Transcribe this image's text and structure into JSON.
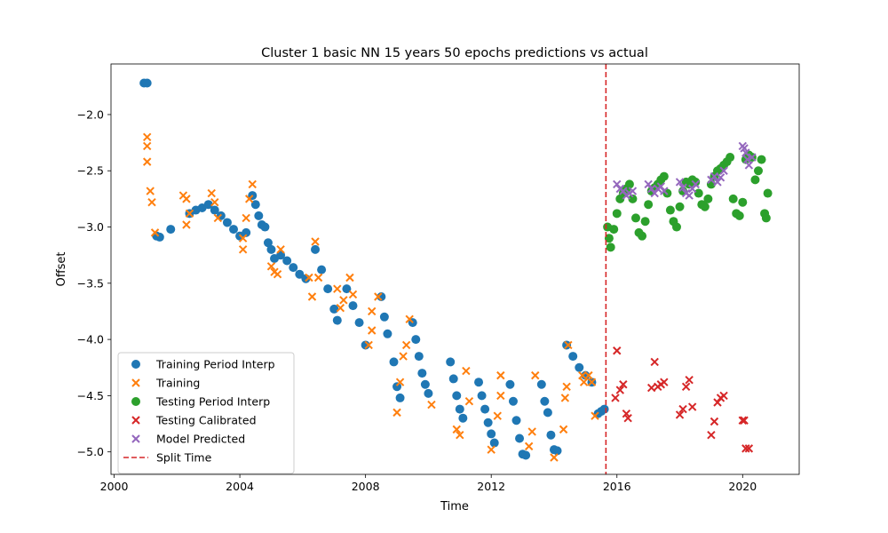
{
  "chart_data": {
    "type": "scatter",
    "title": "Cluster 1 basic NN 15 years 50 epochs predictions vs actual",
    "xlabel": "Time",
    "ylabel": "Offset",
    "xlim": [
      1999.9,
      2021.8
    ],
    "ylim": [
      -5.2,
      -1.55
    ],
    "xticks": [
      2000,
      2004,
      2008,
      2012,
      2016,
      2020
    ],
    "xtick_labels": [
      "2000",
      "2004",
      "2008",
      "2012",
      "2016",
      "2020"
    ],
    "yticks": [
      -2.0,
      -2.5,
      -3.0,
      -3.5,
      -4.0,
      -4.5,
      -5.0
    ],
    "ytick_labels": [
      "−2.0",
      "−2.5",
      "−3.0",
      "−3.5",
      "−4.0",
      "−4.5",
      "−5.0"
    ],
    "grid": false,
    "legend_position": "lower-left",
    "split_time": 2015.65,
    "series": [
      {
        "name": "Training Period Interp",
        "marker": "circle",
        "color": "#1f77b4",
        "points": [
          [
            2000.95,
            -1.72
          ],
          [
            2001.05,
            -1.72
          ],
          [
            2001.35,
            -3.08
          ],
          [
            2001.45,
            -3.09
          ],
          [
            2001.8,
            -3.02
          ],
          [
            2002.4,
            -2.88
          ],
          [
            2002.6,
            -2.85
          ],
          [
            2002.8,
            -2.83
          ],
          [
            2003.0,
            -2.8
          ],
          [
            2003.2,
            -2.85
          ],
          [
            2003.4,
            -2.9
          ],
          [
            2003.6,
            -2.96
          ],
          [
            2003.8,
            -3.02
          ],
          [
            2004.0,
            -3.08
          ],
          [
            2004.2,
            -3.05
          ],
          [
            2004.4,
            -2.72
          ],
          [
            2004.5,
            -2.8
          ],
          [
            2004.6,
            -2.9
          ],
          [
            2004.7,
            -2.98
          ],
          [
            2004.8,
            -3.0
          ],
          [
            2004.9,
            -3.14
          ],
          [
            2005.0,
            -3.2
          ],
          [
            2005.1,
            -3.28
          ],
          [
            2005.3,
            -3.25
          ],
          [
            2005.5,
            -3.3
          ],
          [
            2005.7,
            -3.36
          ],
          [
            2005.9,
            -3.42
          ],
          [
            2006.1,
            -3.46
          ],
          [
            2006.4,
            -3.2
          ],
          [
            2006.6,
            -3.38
          ],
          [
            2006.8,
            -3.55
          ],
          [
            2007.0,
            -3.73
          ],
          [
            2007.1,
            -3.83
          ],
          [
            2007.4,
            -3.55
          ],
          [
            2007.6,
            -3.7
          ],
          [
            2007.8,
            -3.85
          ],
          [
            2008.0,
            -4.05
          ],
          [
            2008.5,
            -3.62
          ],
          [
            2008.6,
            -3.8
          ],
          [
            2008.7,
            -3.95
          ],
          [
            2008.9,
            -4.2
          ],
          [
            2009.0,
            -4.42
          ],
          [
            2009.1,
            -4.52
          ],
          [
            2009.5,
            -3.85
          ],
          [
            2009.6,
            -4.0
          ],
          [
            2009.7,
            -4.15
          ],
          [
            2009.8,
            -4.3
          ],
          [
            2009.9,
            -4.4
          ],
          [
            2010.0,
            -4.48
          ],
          [
            2010.7,
            -4.2
          ],
          [
            2010.8,
            -4.35
          ],
          [
            2010.9,
            -4.5
          ],
          [
            2011.0,
            -4.62
          ],
          [
            2011.1,
            -4.7
          ],
          [
            2011.6,
            -4.38
          ],
          [
            2011.7,
            -4.5
          ],
          [
            2011.8,
            -4.62
          ],
          [
            2011.9,
            -4.74
          ],
          [
            2012.0,
            -4.84
          ],
          [
            2012.1,
            -4.92
          ],
          [
            2012.6,
            -4.4
          ],
          [
            2012.7,
            -4.55
          ],
          [
            2012.8,
            -4.72
          ],
          [
            2012.9,
            -4.88
          ],
          [
            2013.0,
            -5.02
          ],
          [
            2013.1,
            -5.03
          ],
          [
            2013.6,
            -4.4
          ],
          [
            2013.7,
            -4.55
          ],
          [
            2013.8,
            -4.65
          ],
          [
            2013.9,
            -4.85
          ],
          [
            2014.0,
            -4.98
          ],
          [
            2014.1,
            -4.99
          ],
          [
            2014.4,
            -4.05
          ],
          [
            2014.6,
            -4.15
          ],
          [
            2014.8,
            -4.25
          ],
          [
            2015.0,
            -4.32
          ],
          [
            2015.2,
            -4.38
          ],
          [
            2015.4,
            -4.66
          ],
          [
            2015.5,
            -4.64
          ],
          [
            2015.6,
            -4.62
          ]
        ]
      },
      {
        "name": "Training",
        "marker": "x",
        "color": "#ff7f0e",
        "points": [
          [
            2001.05,
            -2.2
          ],
          [
            2001.05,
            -2.28
          ],
          [
            2001.05,
            -2.42
          ],
          [
            2001.15,
            -2.68
          ],
          [
            2001.2,
            -2.78
          ],
          [
            2001.3,
            -3.05
          ],
          [
            2002.2,
            -2.72
          ],
          [
            2002.3,
            -2.75
          ],
          [
            2002.3,
            -2.98
          ],
          [
            2002.4,
            -2.88
          ],
          [
            2003.1,
            -2.7
          ],
          [
            2003.2,
            -2.78
          ],
          [
            2003.3,
            -2.92
          ],
          [
            2004.1,
            -3.1
          ],
          [
            2004.1,
            -3.2
          ],
          [
            2004.2,
            -2.92
          ],
          [
            2004.3,
            -2.75
          ],
          [
            2004.4,
            -2.62
          ],
          [
            2005.0,
            -3.35
          ],
          [
            2005.1,
            -3.4
          ],
          [
            2005.2,
            -3.42
          ],
          [
            2005.3,
            -3.2
          ],
          [
            2006.2,
            -3.45
          ],
          [
            2006.3,
            -3.62
          ],
          [
            2006.4,
            -3.13
          ],
          [
            2006.5,
            -3.45
          ],
          [
            2007.1,
            -3.55
          ],
          [
            2007.2,
            -3.72
          ],
          [
            2007.3,
            -3.65
          ],
          [
            2007.5,
            -3.45
          ],
          [
            2007.6,
            -3.6
          ],
          [
            2008.1,
            -4.05
          ],
          [
            2008.2,
            -3.75
          ],
          [
            2008.2,
            -3.92
          ],
          [
            2008.4,
            -3.62
          ],
          [
            2009.0,
            -4.65
          ],
          [
            2009.1,
            -4.38
          ],
          [
            2009.2,
            -4.15
          ],
          [
            2009.3,
            -4.05
          ],
          [
            2009.4,
            -3.82
          ],
          [
            2010.1,
            -4.58
          ],
          [
            2010.9,
            -4.8
          ],
          [
            2011.0,
            -4.85
          ],
          [
            2011.2,
            -4.28
          ],
          [
            2011.3,
            -4.55
          ],
          [
            2012.0,
            -4.98
          ],
          [
            2012.2,
            -4.68
          ],
          [
            2012.3,
            -4.32
          ],
          [
            2012.3,
            -4.5
          ],
          [
            2013.2,
            -4.95
          ],
          [
            2013.3,
            -4.82
          ],
          [
            2013.4,
            -4.32
          ],
          [
            2014.0,
            -5.05
          ],
          [
            2014.3,
            -4.8
          ],
          [
            2014.35,
            -4.52
          ],
          [
            2014.4,
            -4.42
          ],
          [
            2014.45,
            -4.05
          ],
          [
            2014.9,
            -4.32
          ],
          [
            2014.95,
            -4.38
          ],
          [
            2015.1,
            -4.32
          ],
          [
            2015.2,
            -4.38
          ],
          [
            2015.3,
            -4.68
          ]
        ]
      },
      {
        "name": "Testing Period Interp",
        "marker": "circle",
        "color": "#2ca02c",
        "points": [
          [
            2015.7,
            -3.0
          ],
          [
            2015.75,
            -3.1
          ],
          [
            2015.8,
            -3.18
          ],
          [
            2015.9,
            -3.02
          ],
          [
            2016.0,
            -2.88
          ],
          [
            2016.1,
            -2.75
          ],
          [
            2016.2,
            -2.7
          ],
          [
            2016.3,
            -2.66
          ],
          [
            2016.4,
            -2.62
          ],
          [
            2016.5,
            -2.75
          ],
          [
            2016.6,
            -2.92
          ],
          [
            2016.7,
            -3.05
          ],
          [
            2016.8,
            -3.08
          ],
          [
            2016.9,
            -2.95
          ],
          [
            2017.0,
            -2.8
          ],
          [
            2017.1,
            -2.68
          ],
          [
            2017.2,
            -2.65
          ],
          [
            2017.3,
            -2.62
          ],
          [
            2017.4,
            -2.58
          ],
          [
            2017.5,
            -2.55
          ],
          [
            2017.6,
            -2.7
          ],
          [
            2017.7,
            -2.85
          ],
          [
            2017.8,
            -2.95
          ],
          [
            2017.9,
            -3.0
          ],
          [
            2018.0,
            -2.82
          ],
          [
            2018.1,
            -2.68
          ],
          [
            2018.2,
            -2.6
          ],
          [
            2018.3,
            -2.62
          ],
          [
            2018.4,
            -2.58
          ],
          [
            2018.5,
            -2.6
          ],
          [
            2018.6,
            -2.7
          ],
          [
            2018.7,
            -2.8
          ],
          [
            2018.8,
            -2.82
          ],
          [
            2018.9,
            -2.75
          ],
          [
            2019.0,
            -2.62
          ],
          [
            2019.1,
            -2.55
          ],
          [
            2019.2,
            -2.5
          ],
          [
            2019.3,
            -2.48
          ],
          [
            2019.4,
            -2.45
          ],
          [
            2019.5,
            -2.42
          ],
          [
            2019.6,
            -2.38
          ],
          [
            2019.7,
            -2.75
          ],
          [
            2019.8,
            -2.88
          ],
          [
            2019.9,
            -2.9
          ],
          [
            2020.0,
            -2.78
          ],
          [
            2020.1,
            -2.4
          ],
          [
            2020.2,
            -2.36
          ],
          [
            2020.3,
            -2.38
          ],
          [
            2020.4,
            -2.58
          ],
          [
            2020.5,
            -2.5
          ],
          [
            2020.6,
            -2.4
          ],
          [
            2020.7,
            -2.88
          ],
          [
            2020.75,
            -2.92
          ],
          [
            2020.8,
            -2.7
          ]
        ]
      },
      {
        "name": "Testing Calibrated",
        "marker": "x",
        "color": "#d62728",
        "points": [
          [
            2015.95,
            -4.52
          ],
          [
            2016.0,
            -4.1
          ],
          [
            2016.1,
            -4.45
          ],
          [
            2016.2,
            -4.4
          ],
          [
            2016.3,
            -4.66
          ],
          [
            2016.35,
            -4.7
          ],
          [
            2017.1,
            -4.43
          ],
          [
            2017.2,
            -4.2
          ],
          [
            2017.3,
            -4.42
          ],
          [
            2017.4,
            -4.4
          ],
          [
            2017.5,
            -4.38
          ],
          [
            2018.0,
            -4.67
          ],
          [
            2018.1,
            -4.62
          ],
          [
            2018.2,
            -4.42
          ],
          [
            2018.3,
            -4.36
          ],
          [
            2018.4,
            -4.6
          ],
          [
            2019.0,
            -4.85
          ],
          [
            2019.1,
            -4.73
          ],
          [
            2019.2,
            -4.56
          ],
          [
            2019.3,
            -4.52
          ],
          [
            2019.4,
            -4.5
          ],
          [
            2020.0,
            -4.72
          ],
          [
            2020.05,
            -4.72
          ],
          [
            2020.1,
            -4.97
          ],
          [
            2020.2,
            -4.97
          ]
        ]
      },
      {
        "name": "Model Predicted",
        "marker": "x",
        "color": "#9467bd",
        "points": [
          [
            2016.0,
            -2.62
          ],
          [
            2016.1,
            -2.66
          ],
          [
            2016.2,
            -2.68
          ],
          [
            2016.3,
            -2.72
          ],
          [
            2016.4,
            -2.7
          ],
          [
            2016.5,
            -2.68
          ],
          [
            2017.0,
            -2.62
          ],
          [
            2017.1,
            -2.66
          ],
          [
            2017.2,
            -2.7
          ],
          [
            2017.3,
            -2.66
          ],
          [
            2017.4,
            -2.64
          ],
          [
            2017.5,
            -2.68
          ],
          [
            2018.0,
            -2.6
          ],
          [
            2018.1,
            -2.65
          ],
          [
            2018.2,
            -2.7
          ],
          [
            2018.3,
            -2.72
          ],
          [
            2018.4,
            -2.66
          ],
          [
            2018.5,
            -2.62
          ],
          [
            2019.0,
            -2.58
          ],
          [
            2019.1,
            -2.55
          ],
          [
            2019.2,
            -2.6
          ],
          [
            2019.3,
            -2.56
          ],
          [
            2019.4,
            -2.5
          ],
          [
            2020.0,
            -2.28
          ],
          [
            2020.05,
            -2.3
          ],
          [
            2020.1,
            -2.34
          ],
          [
            2020.15,
            -2.4
          ],
          [
            2020.2,
            -2.45
          ],
          [
            2020.3,
            -2.38
          ]
        ]
      }
    ],
    "split_line": {
      "name": "Split Time",
      "color": "#d62728"
    }
  }
}
